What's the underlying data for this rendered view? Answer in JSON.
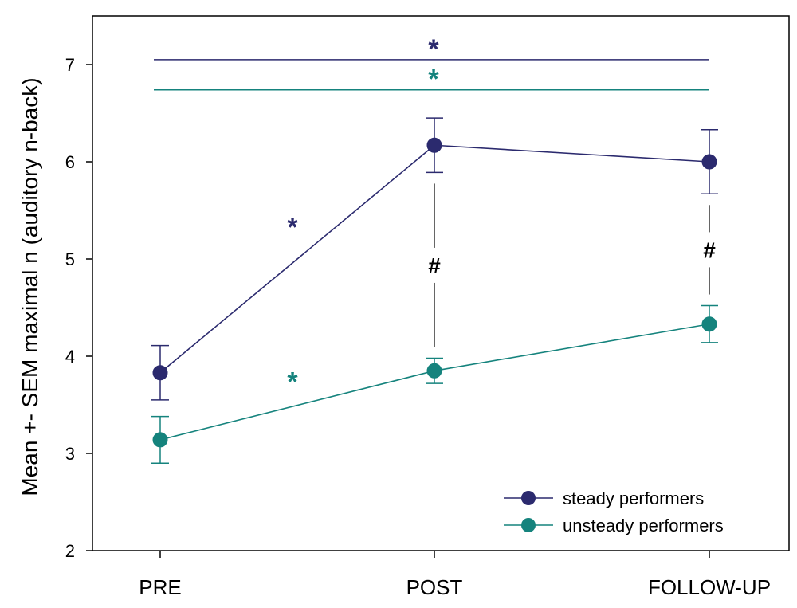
{
  "chart_data": {
    "type": "line",
    "ylabel": "Mean +- SEM maximal n (auditory n-back)",
    "xlabel": "",
    "categories": [
      "PRE",
      "POST",
      "FOLLOW-UP"
    ],
    "ylim": [
      2,
      7.5
    ],
    "yticks": [
      "2",
      "3",
      "4",
      "5",
      "6",
      "7"
    ],
    "legend_position": "bottom-right",
    "series": [
      {
        "name": "steady performers",
        "color": "#2b2a6e",
        "values": [
          3.83,
          6.17,
          6.0
        ],
        "sem": [
          0.28,
          0.28,
          0.33
        ]
      },
      {
        "name": "unsteady performers",
        "color": "#15837d",
        "values": [
          3.14,
          3.85,
          4.33
        ],
        "sem": [
          0.24,
          0.13,
          0.19
        ]
      }
    ],
    "annotations": {
      "overall_star_symbol": "*",
      "hash_symbol": "#",
      "overall_bracket_levels": [
        7.05,
        6.74
      ],
      "segment_star_levels": [
        5.38,
        3.79
      ]
    }
  }
}
